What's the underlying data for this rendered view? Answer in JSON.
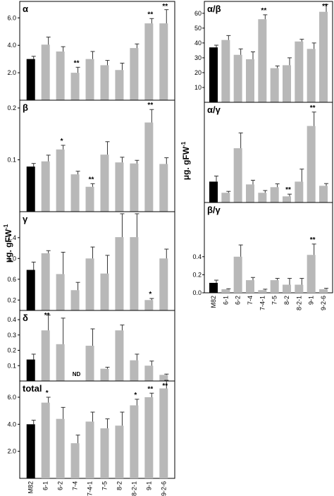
{
  "categories": [
    "M82",
    "6-1",
    "6-2",
    "7-4",
    "7-4-1",
    "7-5",
    "8-2",
    "8-2-1",
    "9-1",
    "9-2-6"
  ],
  "y_axis_label": "μg. gFW",
  "y_axis_label_exponent": "-1",
  "colors": {
    "control": "#000000",
    "lines": "#b8b8b8",
    "error": "#333333"
  },
  "chart_data": [
    {
      "id": "alpha",
      "type": "bar",
      "title": "α",
      "ylim": [
        0,
        7.2
      ],
      "ticks": [
        "2.0",
        "4.0",
        "6.0"
      ],
      "tick_values": [
        2,
        4,
        6
      ],
      "values": [
        3.0,
        4.05,
        3.55,
        2.0,
        3.0,
        2.55,
        2.2,
        3.8,
        5.6,
        5.6
      ],
      "errors": [
        0.2,
        0.55,
        0.35,
        0.4,
        0.55,
        0.35,
        0.5,
        0.3,
        0.35,
        1.0
      ],
      "annotations": [
        "",
        "",
        "",
        "**",
        "",
        "",
        "",
        "",
        "**",
        "**"
      ]
    },
    {
      "id": "beta",
      "type": "bar",
      "title": "β",
      "ylim": [
        0,
        0.215
      ],
      "ticks": [
        "0.1",
        "0.2"
      ],
      "tick_values": [
        0.1,
        0.2
      ],
      "values": [
        0.087,
        0.097,
        0.12,
        0.072,
        0.048,
        0.11,
        0.095,
        0.093,
        0.172,
        0.092
      ],
      "errors": [
        0.006,
        0.012,
        0.008,
        0.006,
        0.006,
        0.025,
        0.01,
        0.006,
        0.025,
        0.012
      ],
      "annotations": [
        "",
        "",
        "*",
        "",
        "**",
        "",
        "",
        "",
        "**",
        ""
      ]
    },
    {
      "id": "gamma",
      "type": "bar",
      "title": "γ",
      "ylim": [
        0,
        1.9
      ],
      "ticks": [
        "0.2",
        "0.6",
        "1.0",
        "1.4"
      ],
      "tick_values": [
        0.2,
        0.6,
        1.0,
        1.4
      ],
      "values": [
        0.78,
        1.1,
        0.7,
        0.39,
        1.0,
        0.71,
        1.41,
        1.41,
        0.2,
        1.0
      ],
      "errors": [
        0.15,
        0.05,
        0.42,
        0.15,
        0.22,
        0.35,
        0.45,
        0.45,
        0.03,
        0.18
      ],
      "annotations": [
        "",
        "",
        "",
        "",
        "",
        "",
        "",
        "",
        "*",
        ""
      ]
    },
    {
      "id": "delta",
      "type": "bar",
      "title": "δ",
      "ylim": [
        0,
        0.46
      ],
      "ticks": [
        "0.1",
        "0.2",
        "0.3",
        "0.4"
      ],
      "tick_values": [
        0.1,
        0.2,
        0.3,
        0.4
      ],
      "values": [
        0.14,
        0.33,
        0.24,
        0,
        0.23,
        0.08,
        0.33,
        0.135,
        0.1,
        0.04
      ],
      "errors": [
        0.035,
        0.1,
        0.17,
        0,
        0.11,
        0.01,
        0.035,
        0.04,
        0.03,
        0.005
      ],
      "annotations": [
        "",
        "**",
        "",
        "ND",
        "",
        "",
        "",
        "",
        "",
        ""
      ]
    },
    {
      "id": "total",
      "type": "bar",
      "title": "total",
      "ylim": [
        0,
        7.2
      ],
      "ticks": [
        "2.0",
        "4.0",
        "6.0"
      ],
      "tick_values": [
        2,
        4,
        6
      ],
      "values": [
        4.0,
        5.6,
        4.4,
        2.6,
        4.2,
        3.7,
        3.9,
        5.4,
        6.0,
        6.65
      ],
      "errors": [
        0.3,
        0.4,
        0.85,
        0.6,
        0.7,
        0.7,
        1.0,
        0.45,
        0.3,
        0.6
      ],
      "annotations": [
        "",
        "*",
        "",
        "",
        "",
        "",
        "",
        "*",
        "**",
        "**"
      ]
    },
    {
      "id": "alpha_beta",
      "type": "bar",
      "title": "α/β",
      "ylim": [
        0,
        68
      ],
      "ticks": [
        "10",
        "20",
        "30",
        "40",
        "50",
        "60"
      ],
      "tick_values": [
        10,
        20,
        30,
        40,
        50,
        60
      ],
      "values": [
        37,
        42,
        32,
        29,
        56,
        23,
        25,
        41,
        36,
        61
      ],
      "errors": [
        1.5,
        3,
        4,
        5,
        3,
        1.5,
        5,
        1.5,
        4,
        5
      ],
      "annotations": [
        "",
        "",
        "",
        "",
        "**",
        "",
        "",
        "",
        "",
        "**"
      ]
    },
    {
      "id": "alpha_gamma",
      "type": "bar",
      "title": "α/γ",
      "ylim": [
        0,
        36
      ],
      "ticks": [],
      "tick_values": [],
      "values": [
        7.5,
        3.5,
        19.5,
        6.5,
        3.5,
        5.5,
        2.2,
        7.5,
        27.5,
        6
      ],
      "errors": [
        2,
        0.5,
        5.5,
        1.5,
        0.8,
        1.2,
        0.8,
        4.5,
        5,
        0.8
      ],
      "annotations": [
        "",
        "",
        "",
        "",
        "",
        "",
        "**",
        "",
        "**",
        ""
      ]
    },
    {
      "id": "beta_gamma",
      "type": "bar",
      "title": "β/γ",
      "ylim": [
        0,
        1.0
      ],
      "ticks": [
        "0.0",
        "0.2",
        "0.4"
      ],
      "tick_values": [
        0,
        0.2,
        0.4
      ],
      "values": [
        0.11,
        0.04,
        0.4,
        0.14,
        0.03,
        0.14,
        0.09,
        0.09,
        0.42,
        0.04
      ],
      "errors": [
        0.03,
        0.005,
        0.13,
        0.03,
        0.01,
        0.02,
        0.07,
        0.07,
        0.12,
        0.01
      ],
      "annotations": [
        "",
        "",
        "",
        "",
        "",
        "",
        "",
        "",
        "**",
        ""
      ]
    }
  ]
}
